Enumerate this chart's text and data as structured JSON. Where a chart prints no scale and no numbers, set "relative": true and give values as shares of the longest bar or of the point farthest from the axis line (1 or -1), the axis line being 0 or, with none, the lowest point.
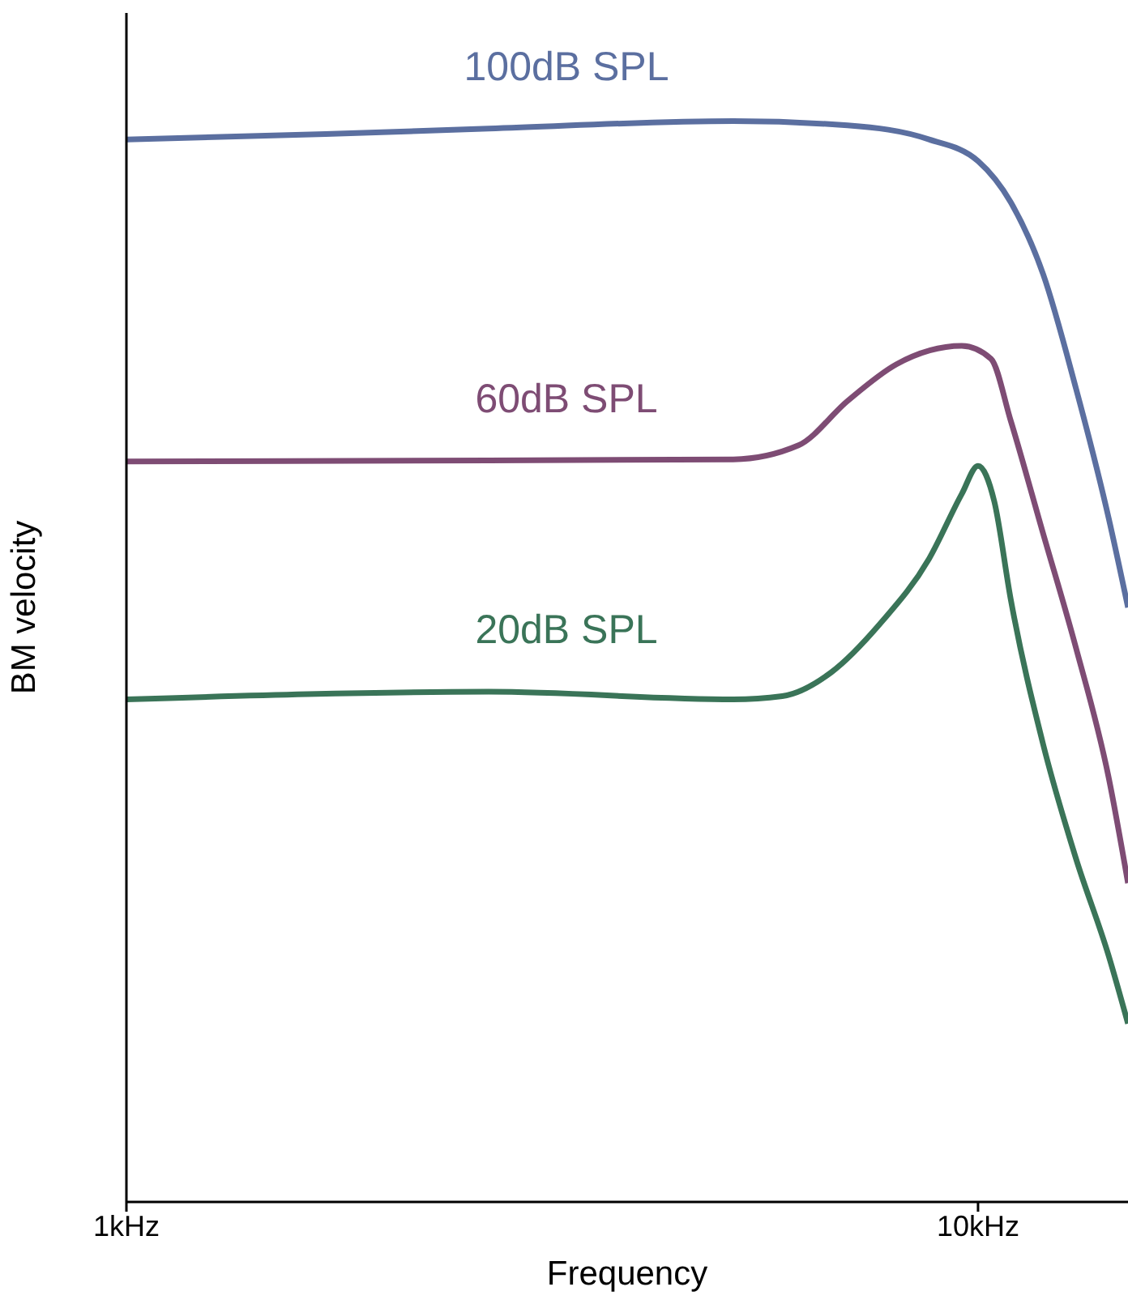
{
  "chart_data": {
    "type": "line",
    "relative": true,
    "xlabel": "Frequency",
    "ylabel": "BM velocity",
    "log": "x",
    "xlim": [
      1,
      15
    ],
    "xticks": [
      {
        "value": 1,
        "label": "1kHz"
      },
      {
        "value": 10,
        "label": "10kHz"
      }
    ],
    "marker": "none",
    "line_style": "solid",
    "series": [
      {
        "name": "100dB SPL",
        "color": "#5b6fa0",
        "x": [
          1,
          1.713,
          2.663,
          5.16,
          7.026,
          8.759,
          10,
          10.922,
          11.928,
          13.028,
          14.233,
          15
        ],
        "values": [
          0.983,
          0.988,
          0.993,
          1,
          0.996,
          0.983,
          0.963,
          0.925,
          0.858,
          0.753,
          0.633,
          0.55
        ]
      },
      {
        "name": "60dB SPL",
        "color": "#7e4c74",
        "x": [
          1,
          2.663,
          5.16,
          6.155,
          7.026,
          8.021,
          9.57,
          10.359,
          10.922,
          11.928,
          13.028,
          14.233,
          15
        ],
        "values": [
          0.685,
          0.686,
          0.687,
          0.7,
          0.741,
          0.775,
          0.792,
          0.78,
          0.723,
          0.618,
          0.513,
          0.393,
          0.295
        ]
      },
      {
        "name": "20dB SPL",
        "color": "#3a7458",
        "x": [
          1,
          2.663,
          5.16,
          5.89,
          6.724,
          7.674,
          8.759,
          9.57,
          10,
          10.45,
          10.922,
          11.928,
          13.028,
          14.233,
          15
        ],
        "values": [
          0.465,
          0.472,
          0.465,
          0.468,
          0.49,
          0.535,
          0.595,
          0.655,
          0.681,
          0.648,
          0.558,
          0.423,
          0.318,
          0.228,
          0.165
        ]
      }
    ]
  }
}
